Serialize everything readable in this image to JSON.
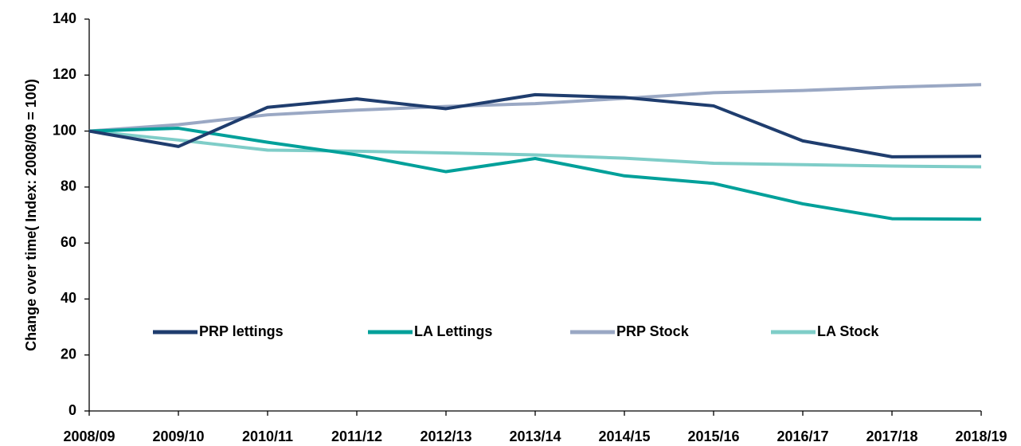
{
  "chart_data": {
    "type": "line",
    "y_label": "Change over time( Index: 2008/09 = 100)",
    "categories": [
      "2008/09",
      "2009/10",
      "2010/11",
      "2011/12",
      "2012/13",
      "2013/14",
      "2014/15",
      "2015/16",
      "2016/17",
      "2017/18",
      "2018/19"
    ],
    "series": [
      {
        "name": "PRP lettings",
        "color": "#1f3d6e",
        "values": [
          100,
          94.5,
          108.5,
          111.5,
          108,
          113,
          112,
          109,
          96.5,
          90.8,
          91
        ]
      },
      {
        "name": "LA Lettings",
        "color": "#00a09a",
        "values": [
          100,
          101,
          96,
          91.5,
          85.5,
          90.2,
          84,
          81.3,
          74,
          68.7,
          68.5
        ]
      },
      {
        "name": "PRP Stock",
        "color": "#9aa8c4",
        "values": [
          100,
          102.3,
          105.8,
          107.5,
          108.8,
          109.8,
          111.7,
          113.7,
          114.5,
          115.7,
          116.6
        ]
      },
      {
        "name": "LA Stock",
        "color": "#7fcdc8",
        "values": [
          100,
          96.8,
          93.2,
          92.8,
          92.2,
          91.5,
          90.3,
          88.5,
          88,
          87.5,
          87.2
        ]
      }
    ],
    "ylim": [
      0,
      140
    ],
    "yticks": [
      0,
      20,
      40,
      60,
      80,
      100,
      120,
      140
    ]
  }
}
